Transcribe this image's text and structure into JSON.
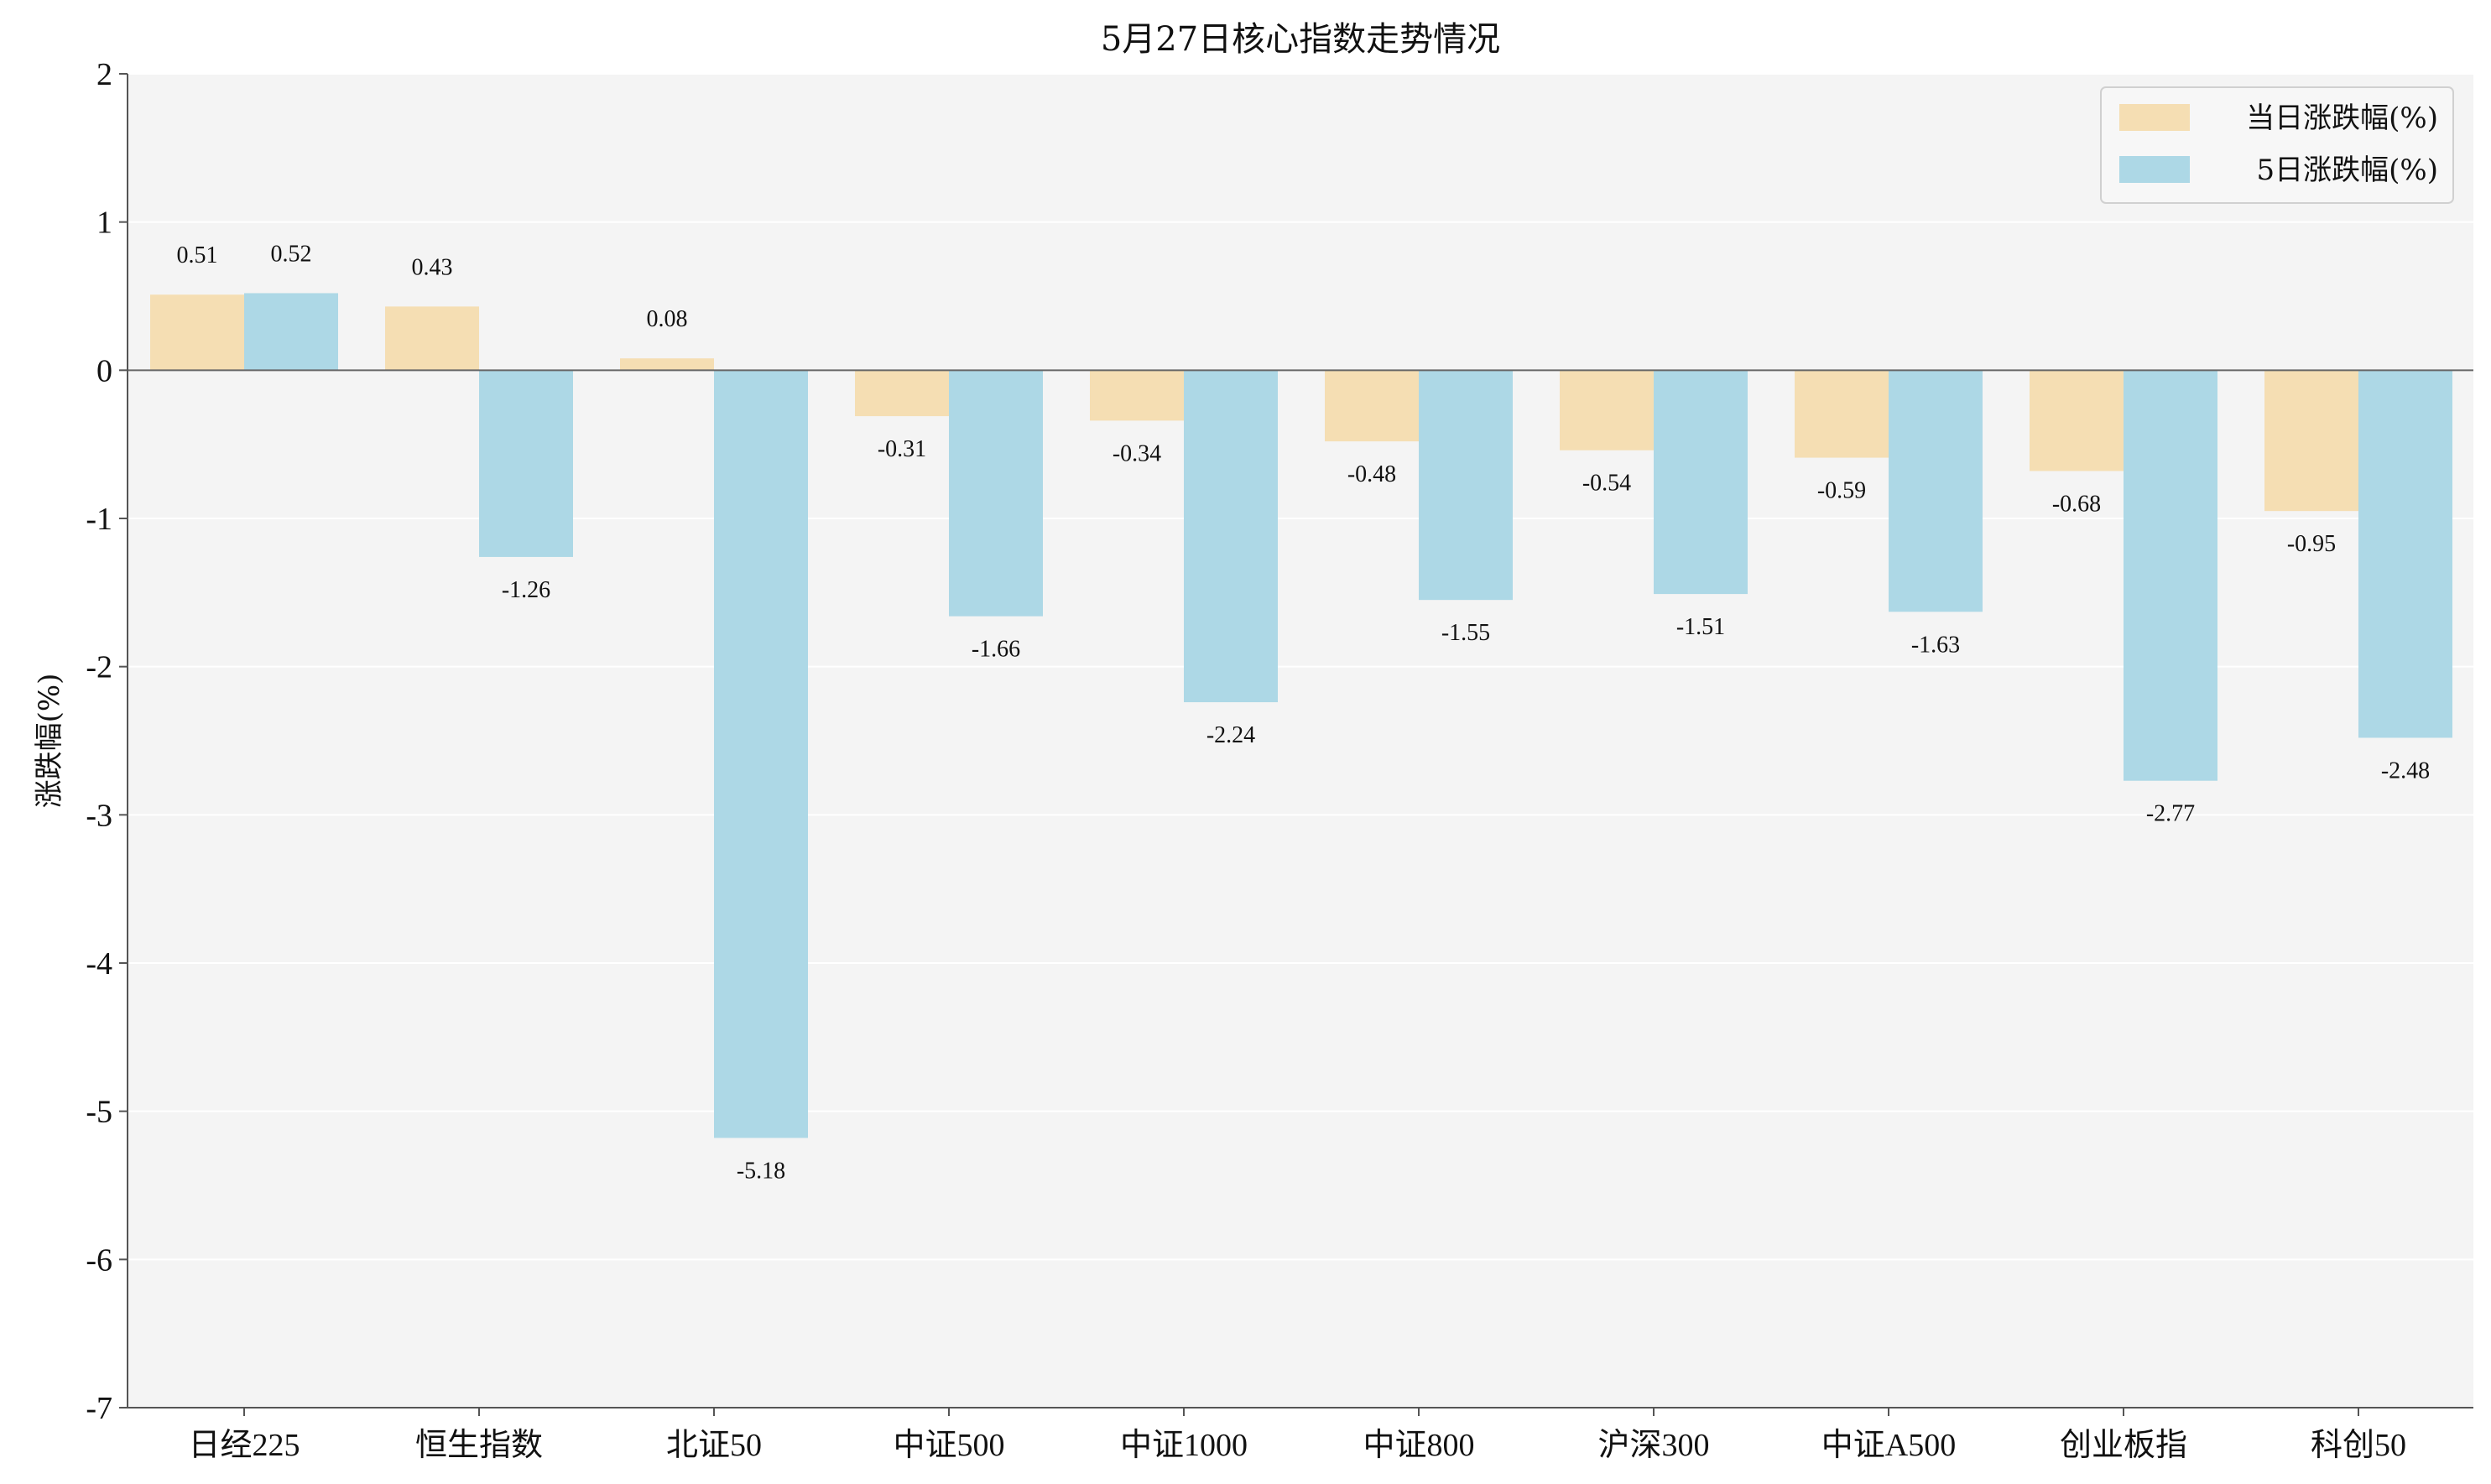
{
  "chart_data": {
    "type": "bar",
    "title": "5月27日核心指数走势情况",
    "xlabel": "",
    "ylabel": "涨跌幅(%)",
    "ylim": [
      -7,
      2
    ],
    "yticks": [
      2,
      1,
      0,
      -1,
      -2,
      -3,
      -4,
      -5,
      -6,
      -7
    ],
    "grid": true,
    "legend_position": "top-right",
    "categories": [
      "日经225",
      "恒生指数",
      "北证50",
      "中证500",
      "中证1000",
      "中证800",
      "沪深300",
      "中证A500",
      "创业板指",
      "科创50"
    ],
    "series": [
      {
        "name": "当日涨跌幅(%)",
        "color": "#f5deb3",
        "values": [
          0.51,
          0.43,
          0.08,
          -0.31,
          -0.34,
          -0.48,
          -0.54,
          -0.59,
          -0.68,
          -0.95
        ]
      },
      {
        "name": "5日涨跌幅(%)",
        "color": "#add8e6",
        "values": [
          0.52,
          -1.26,
          -5.18,
          -1.66,
          -2.24,
          -1.55,
          -1.51,
          -1.63,
          -2.77,
          -2.48
        ]
      }
    ],
    "plot_background": "#f4f4f4",
    "axis_color": "#555555"
  }
}
